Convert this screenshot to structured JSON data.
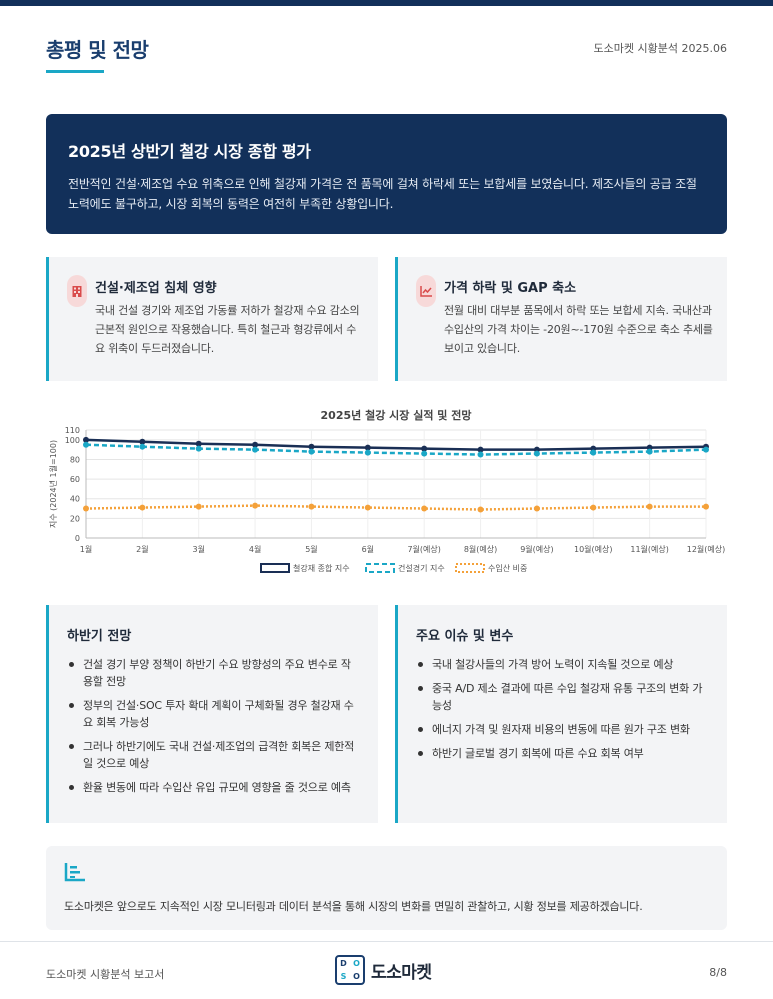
{
  "header": {
    "title": "총평 및 전망",
    "meta": "도소마켓 시황분석 2025.06"
  },
  "summary": {
    "title": "2025년 상반기 철강 시장 종합 평가",
    "text": "전반적인 건설·제조업 수요 위축으로 인해 철강재 가격은 전 품목에 걸쳐 하락세 또는 보합세를 보였습니다. 제조사들의 공급 조절 노력에도 불구하고, 시장 회복의 동력은 여전히 부족한 상황입니다."
  },
  "cards": {
    "impact": {
      "icon": "building-icon",
      "title": "건설·제조업 침체 영향",
      "text": "국내 건설 경기와 제조업 가동률 저하가 철강재 수요 감소의 근본적 원인으로 작용했습니다. 특히 철근과 형강류에서 수요 위축이 두드러졌습니다."
    },
    "price": {
      "icon": "trend-chart-icon",
      "title": "가격 하락 및 GAP 축소",
      "text": "전월 대비 대부분 품목에서 하락 또는 보합세 지속. 국내산과 수입산의 가격 차이는 -20원~-170원 수준으로 축소 추세를 보이고 있습니다."
    }
  },
  "chart_data": {
    "type": "line",
    "title": "2025년 철강 시장 실적 및 전망",
    "xlabel": "",
    "ylabel": "지수 (2024년 1월=100)",
    "categories": [
      "1월",
      "2월",
      "3월",
      "4월",
      "5월",
      "6월",
      "7월(예상)",
      "8월(예상)",
      "9월(예상)",
      "10월(예상)",
      "11월(예상)",
      "12월(예상)"
    ],
    "yticks": [
      0,
      20,
      40,
      60,
      80,
      100,
      110
    ],
    "ylim": [
      0,
      110
    ],
    "grid": true,
    "legend_position": "bottom",
    "series": [
      {
        "name": "철강재 종합 지수",
        "color": "#1a2f55",
        "dash": "solid",
        "values": [
          100,
          98,
          96,
          95,
          93,
          92,
          91,
          90,
          90,
          91,
          92,
          93
        ]
      },
      {
        "name": "건설경기 지수",
        "color": "#1aa7c6",
        "dash": "dashed",
        "values": [
          95,
          93,
          91,
          90,
          88,
          87,
          86,
          85,
          86,
          87,
          88,
          90
        ]
      },
      {
        "name": "수입산 비중",
        "color": "#f4a13a",
        "dash": "dotted",
        "values": [
          30,
          31,
          32,
          33,
          32,
          31,
          30,
          29,
          30,
          31,
          32,
          32
        ]
      }
    ]
  },
  "outlook": {
    "title": "하반기 전망",
    "items": [
      "건설 경기 부양 정책이 하반기 수요 방향성의 주요 변수로 작용할 전망",
      "정부의 건설·SOC 투자 확대 계획이 구체화될 경우 철강재 수요 회복 가능성",
      "그러나 하반기에도 국내 건설·제조업의 급격한 회복은 제한적일 것으로 예상",
      "환율 변동에 따라 수입산 유입 규모에 영향을 줄 것으로 예측"
    ]
  },
  "issues": {
    "title": "주요 이슈 및 변수",
    "items": [
      "국내 철강사들의 가격 방어 노력이 지속될 것으로 예상",
      "중국 A/D 제소 결과에 따른 수입 철강재 유통 구조의 변화 가능성",
      "에너지 가격 및 원자재 비용의 변동에 따른 원가 구조 변화",
      "하반기 글로벌 경기 회복에 따른 수요 회복 여부"
    ]
  },
  "closing": {
    "icon": "bar-chart-icon",
    "text": "도소마켓은 앞으로도 지속적인 시장 모니터링과 데이터 분석을 통해 시장의 변화를 면밀히 관찰하고, 시황 정보를 제공하겠습니다."
  },
  "footer": {
    "left": "도소마켓 시황분석 보고서",
    "logo_letters": [
      "D",
      "O",
      "S",
      "O"
    ],
    "logo_text": "도소마켓",
    "page": "8/8"
  }
}
